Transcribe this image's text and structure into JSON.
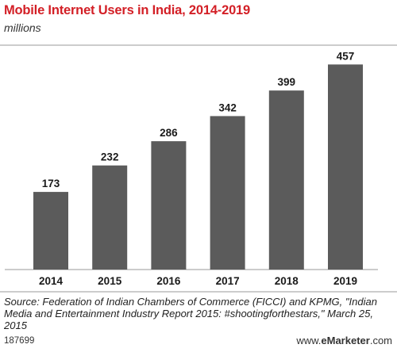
{
  "chart_data": {
    "type": "bar",
    "title": "Mobile Internet Users in India, 2014-2019",
    "subtitle": "millions",
    "categories": [
      "2014",
      "2015",
      "2016",
      "2017",
      "2018",
      "2019"
    ],
    "values": [
      173,
      232,
      286,
      342,
      399,
      457
    ],
    "ylim": [
      0,
      500
    ],
    "grid": false,
    "bar_color": "#5b5b5b"
  },
  "source": "Source: Federation of Indian Chambers of Commerce (FICCI) and KPMG, \"Indian Media and Entertainment Industry Report 2015: #shootingforthestars,\" March 25, 2015",
  "footer": {
    "chart_id": "187699",
    "brand_prefix": "www.",
    "brand_name": "eMarketer",
    "brand_suffix": ".com"
  },
  "colors": {
    "title": "#d31f26",
    "bars": "#5b5b5b",
    "rule": "#999999"
  }
}
